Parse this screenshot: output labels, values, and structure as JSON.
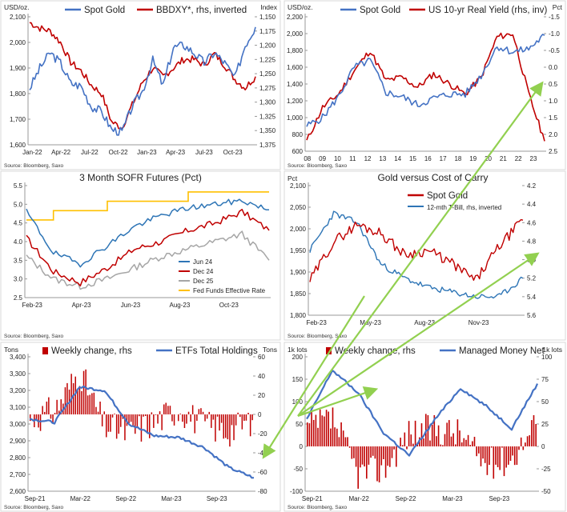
{
  "charts": [
    {
      "name": "gold-dxy",
      "unit_left": "USD/oz.",
      "unit_right": "Index",
      "source": "Source: Bloomberg, Saxo",
      "legend": [
        "Spot Gold",
        "BBDXY*, rhs, inverted"
      ],
      "colors": [
        "#4472c4",
        "#c00000"
      ],
      "y_left_ticks": [
        "2,100",
        "2,000",
        "1,900",
        "1,800",
        "1,700",
        "1,600"
      ],
      "y_right_ticks": [
        "1,150",
        "1,175",
        "1,200",
        "1,225",
        "1,250",
        "1,275",
        "1,300",
        "1,325",
        "1,350",
        "1,375"
      ],
      "x_ticks": [
        "Jan-22",
        "Apr-22",
        "Jul-22",
        "Oct-22",
        "Jan-23",
        "Apr-23",
        "Jul-23",
        "Oct-23"
      ]
    },
    {
      "name": "gold-real-yield",
      "unit_left": "USD/oz.",
      "unit_right": "Pct",
      "source": "Source: Bloomberg, Saxo",
      "legend": [
        "Spot Gold",
        "US 10-yr Real Yield (rhs, inv)"
      ],
      "colors": [
        "#4472c4",
        "#c00000"
      ],
      "y_left_ticks": [
        "2,200",
        "2,000",
        "1,800",
        "1,600",
        "1,400",
        "1,200",
        "1,000",
        "800",
        "600"
      ],
      "y_right_ticks": [
        "-1.5",
        "-1.0",
        "-0.5",
        "0.0",
        "0.5",
        "1.0",
        "1.5",
        "2.0",
        "2.5"
      ],
      "x_ticks": [
        "08",
        "09",
        "10",
        "11",
        "12",
        "13",
        "14",
        "15",
        "16",
        "17",
        "18",
        "19",
        "20",
        "21",
        "22",
        "23"
      ]
    },
    {
      "name": "sofr-futures",
      "title": "3 Month SOFR Futures (Pct)",
      "source": "Source: Bloomberg, Saxo",
      "legend": [
        "Jun 24",
        "Dec 24",
        "Dec 25",
        "Fed Funds Effective Rate"
      ],
      "colors": [
        "#2e75b6",
        "#c00000",
        "#a6a6a6",
        "#ffc000"
      ],
      "y_ticks": [
        "5.5",
        "5.0",
        "4.5",
        "4.0",
        "3.5",
        "3.0",
        "2.5"
      ],
      "x_ticks": [
        "Feb-23",
        "Apr-23",
        "Jun-23",
        "Aug-23",
        "Oct-23"
      ]
    },
    {
      "name": "gold-cost-of-carry",
      "title": "Gold versus Cost of Carry",
      "unit_left": "Pct",
      "source": "Source: Bloomberg, Saxo",
      "legend": [
        "Spot Gold",
        "12-mth T-Bill, rhs, inverted"
      ],
      "colors": [
        "#c00000",
        "#2e75b6"
      ],
      "y_left_ticks": [
        "2,100",
        "2,050",
        "2,000",
        "1,950",
        "1,900",
        "1,850",
        "1,800"
      ],
      "y_right_ticks": [
        "4.2",
        "4.4",
        "4.6",
        "4.8",
        "5.0",
        "5.2",
        "5.4",
        "5.6"
      ],
      "x_ticks": [
        "Feb-23",
        "May-23",
        "Aug-23",
        "Nov-23"
      ]
    },
    {
      "name": "etf-holdings",
      "unit_left": "Tons",
      "unit_right": "Tons",
      "source": "Source: Bloomberg, Saxo",
      "legend": [
        "Weekly change, rhs",
        "ETFs Total Holdings"
      ],
      "colors": [
        "#c00000",
        "#4472c4"
      ],
      "y_left_ticks": [
        "3,400",
        "3,300",
        "3,200",
        "3,100",
        "3,000",
        "2,900",
        "2,800",
        "2,700",
        "2,600"
      ],
      "y_right_ticks": [
        "60",
        "40",
        "20",
        "0",
        "-20",
        "-40",
        "-60",
        "-80"
      ],
      "x_ticks": [
        "Sep-21",
        "Mar-22",
        "Sep-22",
        "Mar-23",
        "Sep-23"
      ]
    },
    {
      "name": "managed-money",
      "unit_left": "1k lots",
      "unit_right": "1k lots",
      "source": "Source: Bloomberg, Saxo",
      "legend": [
        "Weekly change, rhs",
        "Managed Money Net"
      ],
      "colors": [
        "#c00000",
        "#4472c4"
      ],
      "y_left_ticks": [
        "200",
        "150",
        "100",
        "50",
        "0",
        "-50",
        "-100"
      ],
      "y_right_ticks": [
        "100",
        "75",
        "50",
        "25",
        "0",
        "-25",
        "-50"
      ],
      "x_ticks": [
        "Sep-21",
        "Mar-22",
        "Sep-22",
        "Mar-23",
        "Sep-23"
      ]
    }
  ],
  "chart_data": [
    {
      "type": "line",
      "title": "",
      "x": [
        "Jan-22",
        "Feb-22",
        "Mar-22",
        "Apr-22",
        "May-22",
        "Jun-22",
        "Jul-22",
        "Aug-22",
        "Sep-22",
        "Oct-22",
        "Nov-22",
        "Dec-22",
        "Jan-23",
        "Feb-23",
        "Mar-23",
        "Apr-23",
        "May-23",
        "Jun-23",
        "Jul-23",
        "Aug-23",
        "Sep-23",
        "Oct-23",
        "Nov-23"
      ],
      "series": [
        {
          "name": "Spot Gold",
          "axis": "left",
          "ylim": [
            1600,
            2100
          ],
          "values": [
            1820,
            1900,
            1960,
            1920,
            1840,
            1830,
            1750,
            1730,
            1660,
            1650,
            1750,
            1810,
            1930,
            1830,
            1980,
            1990,
            1960,
            1920,
            1960,
            1920,
            1860,
            1990,
            2060
          ]
        },
        {
          "name": "BBDXY*, rhs, inverted",
          "axis": "right",
          "ylim": [
            1375,
            1150
          ],
          "inverted": true,
          "values": [
            1160,
            1170,
            1175,
            1195,
            1230,
            1245,
            1270,
            1285,
            1335,
            1345,
            1305,
            1265,
            1240,
            1255,
            1240,
            1225,
            1225,
            1235,
            1215,
            1235,
            1260,
            1275,
            1255
          ]
        }
      ]
    },
    {
      "type": "line",
      "title": "",
      "x": [
        "08",
        "09",
        "10",
        "11",
        "12",
        "13",
        "14",
        "15",
        "16",
        "17",
        "18",
        "19",
        "20",
        "21",
        "22",
        "23"
      ],
      "series": [
        {
          "name": "Spot Gold",
          "axis": "left",
          "ylim": [
            600,
            2200
          ],
          "values": [
            900,
            1000,
            1250,
            1600,
            1680,
            1300,
            1250,
            1150,
            1230,
            1280,
            1280,
            1500,
            1850,
            1780,
            1820,
            1980
          ]
        },
        {
          "name": "US 10-yr Real Yield (rhs, inv)",
          "axis": "right",
          "ylim": [
            2.5,
            -1.5
          ],
          "inverted": true,
          "values": [
            2.2,
            1.2,
            0.8,
            0.1,
            -0.5,
            0.4,
            0.3,
            0.6,
            0.2,
            0.5,
            0.8,
            0.3,
            -0.9,
            -1.0,
            0.8,
            2.2
          ]
        }
      ]
    },
    {
      "type": "line",
      "title": "3 Month SOFR Futures (Pct)",
      "x": [
        "Feb-23",
        "Mar-23",
        "Apr-23",
        "May-23",
        "Jun-23",
        "Jul-23",
        "Aug-23",
        "Sep-23",
        "Oct-23",
        "Nov-23"
      ],
      "ylim": [
        2.5,
        5.5
      ],
      "series": [
        {
          "name": "Jun 24",
          "values": [
            4.8,
            3.7,
            3.4,
            3.9,
            4.4,
            4.7,
            4.9,
            5.0,
            5.1,
            4.85
          ]
        },
        {
          "name": "Dec 24",
          "values": [
            4.1,
            3.2,
            2.9,
            3.3,
            3.8,
            4.0,
            4.3,
            4.5,
            4.8,
            4.3
          ]
        },
        {
          "name": "Dec 25",
          "values": [
            3.6,
            3.0,
            2.8,
            3.0,
            3.3,
            3.6,
            3.8,
            4.0,
            4.2,
            3.5
          ]
        },
        {
          "name": "Fed Funds Effective Rate",
          "values": [
            4.58,
            4.83,
            4.83,
            5.08,
            5.08,
            5.08,
            5.33,
            5.33,
            5.33,
            5.33
          ]
        }
      ]
    },
    {
      "type": "line",
      "title": "Gold versus Cost of Carry",
      "x": [
        "Feb-23",
        "Mar-23",
        "Apr-23",
        "May-23",
        "Jun-23",
        "Jul-23",
        "Aug-23",
        "Sep-23",
        "Oct-23",
        "Nov-23"
      ],
      "series": [
        {
          "name": "Spot Gold",
          "axis": "left",
          "ylim": [
            1800,
            2100
          ],
          "values": [
            1880,
            1970,
            2010,
            1990,
            1940,
            1950,
            1920,
            1880,
            1960,
            2020
          ]
        },
        {
          "name": "12-mth T-Bill, rhs, inverted",
          "axis": "right",
          "ylim": [
            5.6,
            4.2
          ],
          "inverted": true,
          "values": [
            4.9,
            4.5,
            4.6,
            5.05,
            5.2,
            5.3,
            5.35,
            5.4,
            5.4,
            5.2
          ]
        }
      ]
    },
    {
      "type": "bar+line",
      "title": "",
      "x": [
        "Sep-21",
        "Dec-21",
        "Mar-22",
        "Jun-22",
        "Sep-22",
        "Dec-22",
        "Mar-23",
        "Jun-23",
        "Sep-23",
        "Nov-23"
      ],
      "series": [
        {
          "name": "ETFs Total Holdings",
          "axis": "left",
          "type": "line",
          "ylim": [
            2600,
            3400
          ],
          "values": [
            3030,
            3010,
            3220,
            3200,
            3000,
            2930,
            2920,
            2860,
            2740,
            2680
          ]
        },
        {
          "name": "Weekly change, rhs",
          "axis": "right",
          "type": "bar",
          "ylim": [
            -80,
            60
          ],
          "values": [
            -5,
            4,
            45,
            -12,
            -20,
            -8,
            6,
            -10,
            -18,
            -6
          ]
        }
      ]
    },
    {
      "type": "bar+line",
      "title": "",
      "x": [
        "Sep-21",
        "Dec-21",
        "Mar-22",
        "Jun-22",
        "Sep-22",
        "Dec-22",
        "Mar-23",
        "Jun-23",
        "Sep-23",
        "Nov-23"
      ],
      "series": [
        {
          "name": "Managed Money Net",
          "axis": "left",
          "type": "line",
          "ylim": [
            -100,
            200
          ],
          "values": [
            60,
            170,
            120,
            30,
            -20,
            60,
            130,
            90,
            40,
            140
          ]
        },
        {
          "name": "Weekly change, rhs",
          "axis": "right",
          "type": "bar",
          "ylim": [
            -50,
            100
          ],
          "values": [
            20,
            30,
            -30,
            -25,
            15,
            20,
            15,
            -20,
            -15,
            25
          ]
        }
      ]
    }
  ]
}
